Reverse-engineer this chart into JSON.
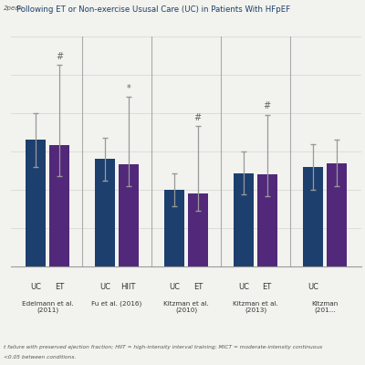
{
  "title": "Following ET or Non-exercise Ususal Care (UC) in Patients With HFpEF",
  "title_prefix": "2peak",
  "background_color": "#f2f2ee",
  "bar_color_blue": "#1c3f6e",
  "bar_color_purple": "#52287a",
  "groups": [
    {
      "label1": "UC",
      "label2": "ET",
      "study": "Edelmann et al.\n(2011)",
      "blue_val": 16.5,
      "purple_val": 15.8,
      "blue_err_lo": 3.5,
      "blue_err_hi": 3.5,
      "purple_err_lo": 4.0,
      "purple_err_hi": 10.5,
      "annotation": "#",
      "ann_on_purple": true
    },
    {
      "label1": "UC",
      "label2": "HIIT",
      "study": "Fu et al. (2016)",
      "blue_val": 14.0,
      "purple_val": 13.3,
      "blue_err_lo": 2.8,
      "blue_err_hi": 2.8,
      "purple_err_lo": 2.8,
      "purple_err_hi": 8.8,
      "annotation": "*",
      "ann_on_purple": true
    },
    {
      "label1": "UC",
      "label2": "ET",
      "study": "Kitzman et al.\n(2010)",
      "blue_val": 10.0,
      "purple_val": 9.5,
      "blue_err_lo": 2.2,
      "blue_err_hi": 2.2,
      "purple_err_lo": 2.2,
      "purple_err_hi": 8.8,
      "annotation": "#",
      "ann_on_purple": true
    },
    {
      "label1": "UC",
      "label2": "ET",
      "study": "Kitzman et al.\n(2013)",
      "blue_val": 12.2,
      "purple_val": 12.0,
      "blue_err_lo": 2.8,
      "blue_err_hi": 2.8,
      "purple_err_lo": 2.8,
      "purple_err_hi": 7.8,
      "annotation": "#",
      "ann_on_purple": true
    },
    {
      "label1": "UC",
      "label2": "",
      "study": "Kitzman\n(201...",
      "blue_val": 13.0,
      "purple_val": 13.5,
      "blue_err_lo": 3.0,
      "blue_err_hi": 3.0,
      "purple_err_lo": 3.0,
      "purple_err_hi": 3.0,
      "annotation": null,
      "ann_on_purple": false
    }
  ],
  "ylim": [
    0,
    30
  ],
  "grid_color": "#d8d8d8",
  "separator_color": "#aaaaaa",
  "footnote_line1": "t failure with preserved ejection fraction; HIIT = high-intensity interval training; MICT = moderate-intensity continuous",
  "footnote_line2": "<0.05 between conditions."
}
